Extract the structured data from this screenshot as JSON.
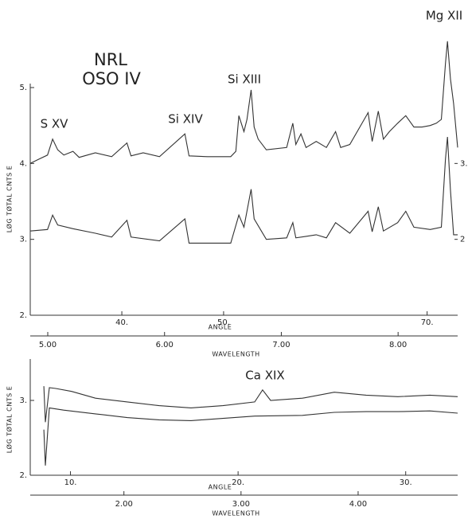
{
  "chart_data": [
    {
      "type": "line",
      "annotations": [
        "NRL",
        "OSO IV",
        "S XV",
        "Si XIV",
        "Si XIII",
        "Mg XII"
      ],
      "x_label": "ANGLE",
      "x2_label": "WAVELENGTH",
      "y_label": "LØG TØTAL CNTS E",
      "xlim": [
        31,
        73
      ],
      "xticks": [
        {
          "value": 40,
          "label": "40."
        },
        {
          "value": 50,
          "label": "50."
        },
        {
          "value": 70,
          "label": "70."
        }
      ],
      "x2lim": [
        4.85,
        8.51
      ],
      "x2ticks": [
        {
          "value": 5,
          "label": "5.00"
        },
        {
          "value": 6,
          "label": "6.00"
        },
        {
          "value": 7,
          "label": "7.00"
        },
        {
          "value": 8,
          "label": "8.00"
        }
      ],
      "ylim": [
        2,
        5
      ],
      "yticks": [
        {
          "value": 2,
          "label": "2."
        },
        {
          "value": 3,
          "label": "3."
        },
        {
          "value": 4,
          "label": "4."
        },
        {
          "value": 5,
          "label": "5."
        }
      ],
      "y2lim": [
        1,
        4
      ],
      "y2ticks": [
        {
          "value": 3,
          "label": "3."
        },
        2
      ],
      "series": [
        {
          "color": "#333333",
          "x": [
            31.0,
            31.9,
            32.7,
            33.2,
            33.7,
            34.3,
            35.2,
            35.8,
            37.4,
            39.0,
            40.5,
            40.9,
            42.1,
            43.7,
            46.2,
            46.6,
            48.4,
            50.7,
            51.2,
            51.5,
            52.0,
            52.3,
            52.7,
            53.0,
            53.4,
            54.2,
            56.2,
            56.8,
            57.1,
            57.6,
            58.1,
            59.1,
            60.1,
            61.0,
            61.5,
            62.4,
            64.2,
            64.6,
            65.2,
            65.7,
            66.3,
            67.1,
            67.9,
            68.7,
            69.5,
            70.3,
            70.9,
            71.4,
            71.8,
            72.0,
            72.3,
            72.6,
            73.0
          ],
          "values": [
            4.0,
            4.06,
            4.11,
            4.32,
            4.18,
            4.11,
            4.16,
            4.08,
            4.14,
            4.09,
            4.27,
            4.1,
            4.14,
            4.09,
            4.39,
            4.1,
            4.09,
            4.09,
            4.16,
            4.63,
            4.42,
            4.58,
            4.97,
            4.48,
            4.32,
            4.18,
            4.21,
            4.53,
            4.25,
            4.39,
            4.21,
            4.29,
            4.21,
            4.42,
            4.21,
            4.25,
            4.67,
            4.29,
            4.69,
            4.32,
            4.42,
            4.53,
            4.63,
            4.48,
            4.48,
            4.5,
            4.53,
            4.58,
            5.32,
            5.61,
            5.11,
            4.79,
            4.21
          ]
        },
        {
          "color": "#333333",
          "x": [
            31.0,
            32.7,
            33.2,
            33.7,
            35.2,
            37.4,
            39.0,
            40.5,
            40.9,
            43.7,
            46.2,
            46.6,
            50.7,
            51.5,
            52.0,
            52.7,
            53.0,
            54.2,
            56.2,
            56.8,
            57.1,
            58.1,
            59.1,
            60.1,
            61.0,
            62.4,
            64.2,
            64.6,
            65.2,
            65.7,
            67.1,
            67.9,
            68.7,
            70.3,
            71.4,
            71.8,
            72.0,
            72.3,
            72.6,
            73.0
          ],
          "values": [
            3.11,
            3.13,
            3.32,
            3.19,
            3.14,
            3.08,
            3.03,
            3.25,
            3.03,
            2.98,
            3.27,
            2.95,
            2.95,
            3.32,
            3.16,
            3.66,
            3.27,
            3.0,
            3.02,
            3.22,
            3.02,
            3.04,
            3.06,
            3.02,
            3.22,
            3.08,
            3.37,
            3.1,
            3.43,
            3.11,
            3.22,
            3.37,
            3.16,
            3.13,
            3.16,
            4.06,
            4.35,
            3.64,
            3.06,
            3.06
          ]
        }
      ]
    },
    {
      "type": "line",
      "annotations": [
        "Ca XIX"
      ],
      "x_label": "ANGLE",
      "x2_label": "WAVELENGTH",
      "y_label": "LØG TØTAL CNTS E",
      "xlim": [
        7.6,
        33.1
      ],
      "xticks": [
        {
          "value": 10,
          "label": "10."
        },
        {
          "value": 20,
          "label": "20."
        },
        {
          "value": 30,
          "label": "30."
        }
      ],
      "x2lim": [
        1.2,
        4.85
      ],
      "x2ticks": [
        {
          "value": 2,
          "label": "2.00"
        },
        {
          "value": 3,
          "label": "3.00"
        },
        {
          "value": 4,
          "label": "4.00"
        }
      ],
      "ylim": [
        2,
        3.5
      ],
      "yticks": [
        {
          "value": 2,
          "label": "2."
        },
        {
          "value": 3,
          "label": "3."
        }
      ],
      "series": [
        {
          "color": "#333333",
          "x": [
            8.41,
            8.5,
            8.74,
            9.12,
            10.07,
            11.49,
            13.39,
            15.29,
            17.19,
            19.09,
            20.99,
            21.46,
            21.94,
            23.84,
            25.74,
            27.64,
            29.54,
            31.44,
            33.1
          ],
          "values": [
            3.19,
            2.71,
            3.17,
            3.16,
            3.12,
            3.03,
            2.98,
            2.93,
            2.9,
            2.93,
            2.98,
            3.14,
            3.0,
            3.03,
            3.11,
            3.07,
            3.05,
            3.07,
            3.05
          ]
        },
        {
          "color": "#333333",
          "x": [
            8.41,
            8.5,
            8.74,
            9.59,
            11.49,
            13.39,
            15.29,
            17.19,
            19.09,
            20.99,
            23.84,
            25.74,
            27.64,
            29.54,
            31.44,
            33.1
          ],
          "values": [
            2.61,
            2.13,
            2.9,
            2.87,
            2.82,
            2.77,
            2.74,
            2.73,
            2.76,
            2.79,
            2.8,
            2.84,
            2.85,
            2.85,
            2.86,
            2.83
          ]
        }
      ]
    }
  ]
}
